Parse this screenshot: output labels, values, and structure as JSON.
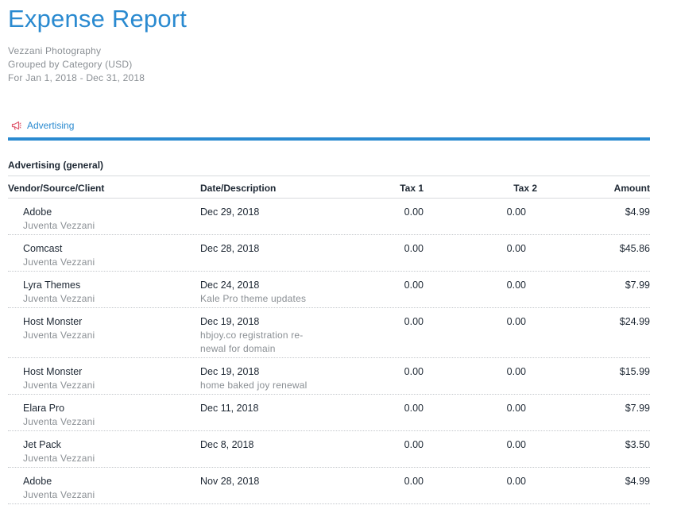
{
  "report": {
    "title": "Expense Report",
    "company": "Vezzani Photography",
    "grouping": "Grouped by Category (USD)",
    "period": "For Jan 1, 2018 - Dec 31, 2018"
  },
  "category": {
    "label": "Advertising",
    "icon": "megaphone-icon",
    "accent_color": "#2a8ad0",
    "icon_color": "#e05a6f"
  },
  "section": {
    "title": "Advertising (general)"
  },
  "table": {
    "headers": {
      "vendor": "Vendor/Source/Client",
      "date": "Date/Description",
      "tax1": "Tax 1",
      "tax2": "Tax 2",
      "amount": "Amount"
    },
    "rows": [
      {
        "vendor": "Adobe",
        "client": "Juventa Vezzani",
        "date": "Dec 29, 2018",
        "description": "",
        "tax1": "0.00",
        "tax2": "0.00",
        "amount": "$4.99"
      },
      {
        "vendor": "Comcast",
        "client": "Juventa Vezzani",
        "date": "Dec 28, 2018",
        "description": "",
        "tax1": "0.00",
        "tax2": "0.00",
        "amount": "$45.86"
      },
      {
        "vendor": "Lyra Themes",
        "client": "Juventa Vezzani",
        "date": "Dec 24, 2018",
        "description": "Kale Pro theme updates",
        "tax1": "0.00",
        "tax2": "0.00",
        "amount": "$7.99"
      },
      {
        "vendor": "Host Monster",
        "client": "Juventa Vezzani",
        "date": "Dec 19, 2018",
        "description": "hbjoy.co registration re-newal for domain",
        "tax1": "0.00",
        "tax2": "0.00",
        "amount": "$24.99"
      },
      {
        "vendor": "Host Monster",
        "client": "Juventa Vezzani",
        "date": "Dec 19, 2018",
        "description": "home baked joy renewal",
        "tax1": "0.00",
        "tax2": "0.00",
        "amount": "$15.99"
      },
      {
        "vendor": "Elara Pro",
        "client": "Juventa Vezzani",
        "date": "Dec 11, 2018",
        "description": "",
        "tax1": "0.00",
        "tax2": "0.00",
        "amount": "$7.99"
      },
      {
        "vendor": "Jet Pack",
        "client": "Juventa Vezzani",
        "date": "Dec 8, 2018",
        "description": "",
        "tax1": "0.00",
        "tax2": "0.00",
        "amount": "$3.50"
      },
      {
        "vendor": "Adobe",
        "client": "Juventa Vezzani",
        "date": "Nov 28, 2018",
        "description": "",
        "tax1": "0.00",
        "tax2": "0.00",
        "amount": "$4.99"
      }
    ]
  }
}
